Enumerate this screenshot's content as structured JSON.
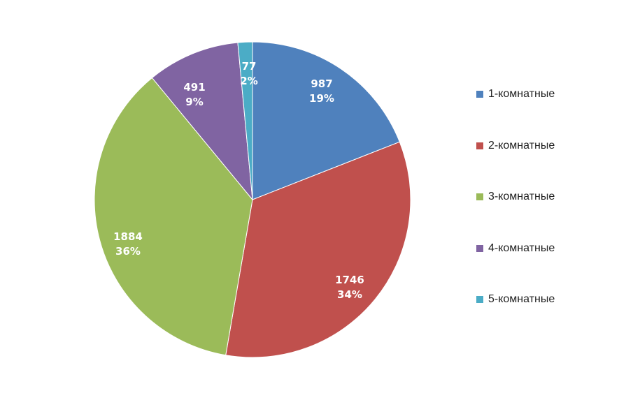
{
  "chart_data": {
    "type": "pie",
    "title": "",
    "categories": [
      "1-комнатные",
      "2-комнатные",
      "3-комнатные",
      "4-комнатные",
      "5-комнатные"
    ],
    "values": [
      987,
      1746,
      1884,
      491,
      77
    ],
    "percent_labels": [
      "19%",
      "34%",
      "36%",
      "9%",
      "2%"
    ],
    "colors": [
      "#4F81BD",
      "#C0504D",
      "#9BBB59",
      "#8064A2",
      "#4BACC6"
    ],
    "start_angle_deg": 0,
    "direction": "clockwise",
    "data_labels": "value and percent",
    "legend": "right"
  }
}
